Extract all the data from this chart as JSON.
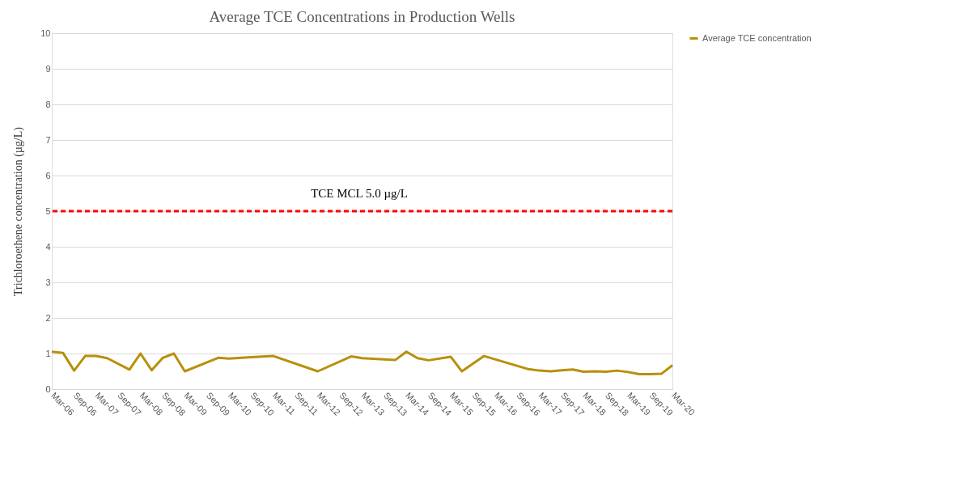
{
  "chart_data": {
    "type": "line",
    "title": "Average TCE Concentrations in Production Wells",
    "ylabel": "Trichloroethene concentration (µg/L)",
    "x": [
      "2006-03",
      "2006-06",
      "2006-09",
      "2006-12",
      "2007-03",
      "2007-06",
      "2007-12",
      "2008-03",
      "2008-06",
      "2008-09",
      "2008-12",
      "2009-03",
      "2009-12",
      "2010-03",
      "2010-09",
      "2011-03",
      "2012-03",
      "2012-12",
      "2013-03",
      "2013-12",
      "2014-03",
      "2014-06",
      "2014-09",
      "2015-03",
      "2015-06",
      "2015-12",
      "2016-12",
      "2017-03",
      "2017-06",
      "2017-09",
      "2017-12",
      "2018-03",
      "2018-06",
      "2018-09",
      "2018-12",
      "2019-03",
      "2019-06",
      "2019-09",
      "2019-12",
      "2020-03"
    ],
    "series": [
      {
        "name": "Average TCE concentration",
        "color": "#b8900c",
        "values": [
          1.05,
          1.02,
          0.52,
          0.93,
          0.93,
          0.87,
          0.55,
          1.0,
          0.53,
          0.88,
          1.0,
          0.5,
          0.88,
          0.86,
          0.9,
          0.93,
          0.5,
          0.92,
          0.87,
          0.82,
          1.05,
          0.87,
          0.81,
          0.91,
          0.5,
          0.93,
          0.56,
          0.52,
          0.5,
          0.53,
          0.55,
          0.49,
          0.5,
          0.49,
          0.52,
          0.48,
          0.42,
          0.42,
          0.43,
          0.67
        ]
      }
    ],
    "xlim": [
      "2006-03",
      "2020-03"
    ],
    "xticks": [
      {
        "value": "2006-03",
        "label": "Mar-06"
      },
      {
        "value": "2006-09",
        "label": "Sep-06"
      },
      {
        "value": "2007-03",
        "label": "Mar-07"
      },
      {
        "value": "2007-09",
        "label": "Sep-07"
      },
      {
        "value": "2008-03",
        "label": "Mar-08"
      },
      {
        "value": "2008-09",
        "label": "Sep-08"
      },
      {
        "value": "2009-03",
        "label": "Mar-09"
      },
      {
        "value": "2009-09",
        "label": "Sep-09"
      },
      {
        "value": "2010-03",
        "label": "Mar-10"
      },
      {
        "value": "2010-09",
        "label": "Sep-10"
      },
      {
        "value": "2011-03",
        "label": "Mar-11"
      },
      {
        "value": "2011-09",
        "label": "Sep-11"
      },
      {
        "value": "2012-03",
        "label": "Mar-12"
      },
      {
        "value": "2012-09",
        "label": "Sep-12"
      },
      {
        "value": "2013-03",
        "label": "Mar-13"
      },
      {
        "value": "2013-09",
        "label": "Sep-13"
      },
      {
        "value": "2014-03",
        "label": "Mar-14"
      },
      {
        "value": "2014-09",
        "label": "Sep-14"
      },
      {
        "value": "2015-03",
        "label": "Mar-15"
      },
      {
        "value": "2015-09",
        "label": "Sep-15"
      },
      {
        "value": "2016-03",
        "label": "Mar-16"
      },
      {
        "value": "2016-09",
        "label": "Sep-16"
      },
      {
        "value": "2017-03",
        "label": "Mar-17"
      },
      {
        "value": "2017-09",
        "label": "Sep-17"
      },
      {
        "value": "2018-03",
        "label": "Mar-18"
      },
      {
        "value": "2018-09",
        "label": "Sep-18"
      },
      {
        "value": "2019-03",
        "label": "Mar-19"
      },
      {
        "value": "2019-09",
        "label": "Sep-19"
      },
      {
        "value": "2020-03",
        "label": "Mar-20"
      }
    ],
    "ylim": [
      0,
      10
    ],
    "yticks": [
      0,
      1,
      2,
      3,
      4,
      5,
      6,
      7,
      8,
      9,
      10
    ],
    "ref_lines": [
      {
        "axis": "y",
        "value": 5,
        "label": "TCE MCL 5.0 µg/L",
        "color": "#ff0000",
        "line_style": "dashed"
      }
    ],
    "grid": "y",
    "legend": "right",
    "marker": "none",
    "line_style": "solid"
  }
}
